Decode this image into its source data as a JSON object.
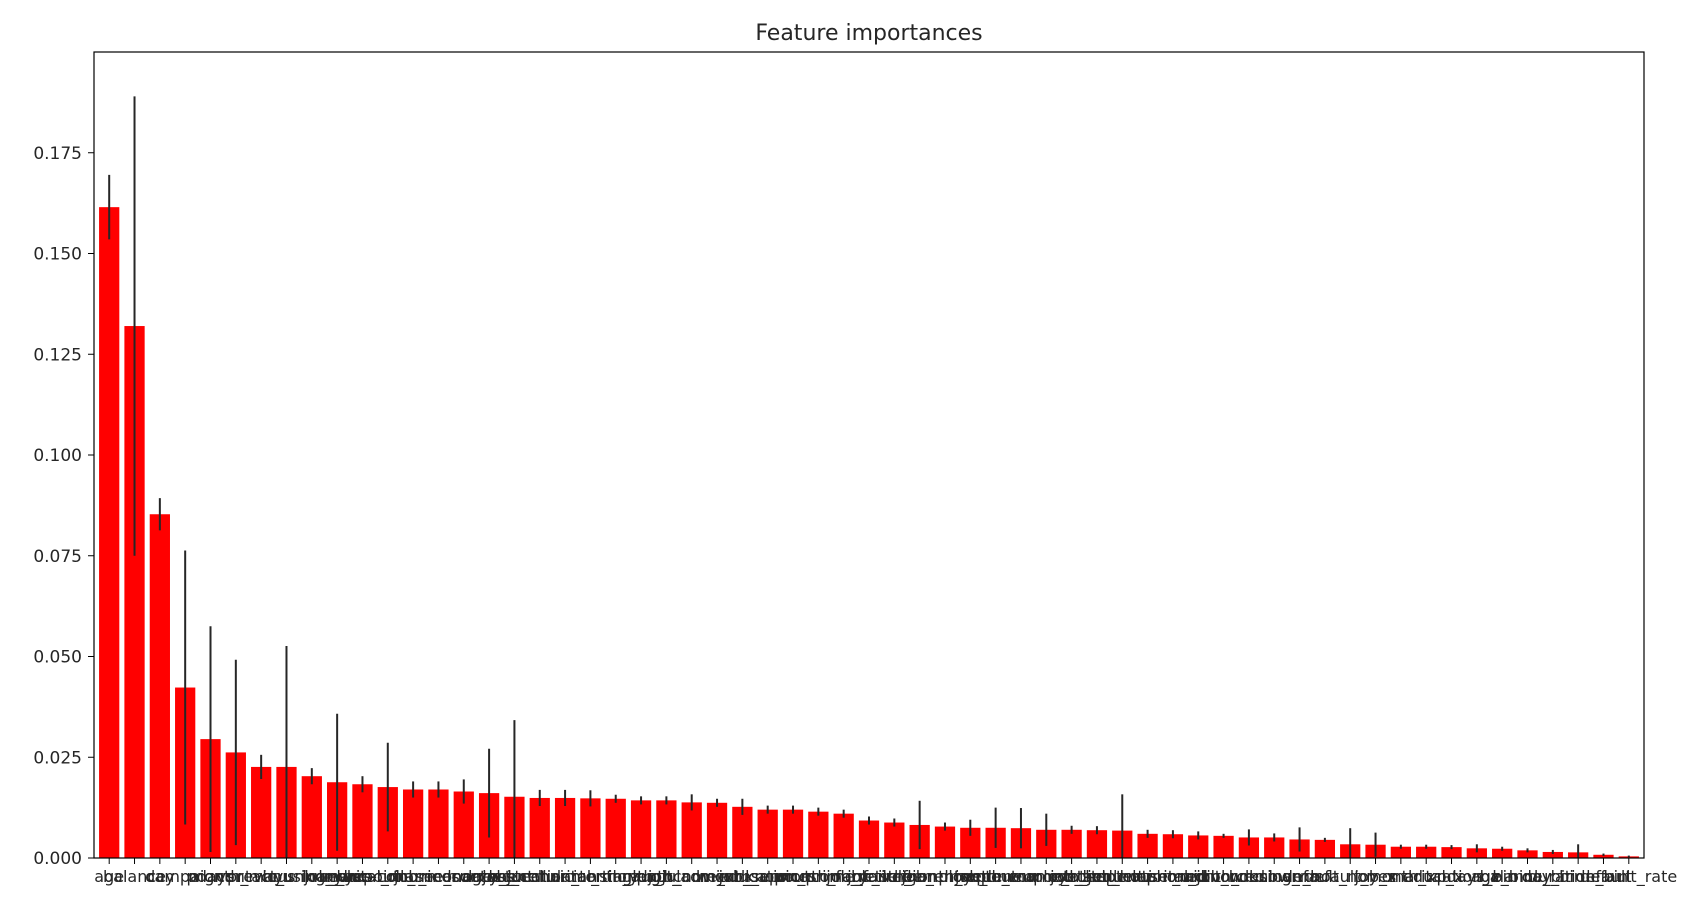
{
  "chart_data": {
    "type": "bar",
    "title": "Feature importances",
    "xlabel": "",
    "ylabel": "",
    "ylim": [
      0,
      0.2
    ],
    "yticks": [
      "0.000",
      "0.025",
      "0.050",
      "0.075",
      "0.100",
      "0.125",
      "0.150",
      "0.175"
    ],
    "ytick_values": [
      0,
      0.025,
      0.05,
      0.075,
      0.1,
      0.125,
      0.15,
      0.175
    ],
    "grid": false,
    "bar_color": "#ff0000",
    "error_color": "#262626",
    "values": [
      0.1615,
      0.132,
      0.0853,
      0.0423,
      0.0295,
      0.0262,
      0.0226,
      0.0226,
      0.0203,
      0.0188,
      0.0183,
      0.0176,
      0.017,
      0.017,
      0.0165,
      0.0161,
      0.0152,
      0.0149,
      0.0149,
      0.0148,
      0.0147,
      0.0143,
      0.0143,
      0.0138,
      0.0137,
      0.0127,
      0.012,
      0.012,
      0.0115,
      0.011,
      0.0093,
      0.0088,
      0.0082,
      0.0078,
      0.0075,
      0.0075,
      0.0074,
      0.007,
      0.007,
      0.0069,
      0.0068,
      0.006,
      0.0059,
      0.0056,
      0.0055,
      0.0051,
      0.0051,
      0.0046,
      0.0045,
      0.0034,
      0.0033,
      0.0028,
      0.0028,
      0.0027,
      0.0024,
      0.0023,
      0.0019,
      0.0015,
      0.0014,
      0.0008,
      0.0004
    ],
    "errors": [
      0.008,
      0.057,
      0.004,
      0.034,
      0.028,
      0.023,
      0.003,
      0.03,
      0.002,
      0.017,
      0.002,
      0.011,
      0.002,
      0.002,
      0.003,
      0.011,
      0.019,
      0.002,
      0.002,
      0.002,
      0.001,
      0.001,
      0.001,
      0.002,
      0.001,
      0.002,
      0.001,
      0.001,
      0.001,
      0.001,
      0.001,
      0.001,
      0.006,
      0.001,
      0.002,
      0.005,
      0.005,
      0.004,
      0.001,
      0.001,
      0.009,
      0.001,
      0.001,
      0.001,
      0.0005,
      0.002,
      0.001,
      0.003,
      0.0005,
      0.004,
      0.003,
      0.0005,
      0.0005,
      0.0005,
      0.001,
      0.0005,
      0.0005,
      0.0005,
      0.002,
      0.0003,
      0.0002
    ],
    "categories": [
      "age",
      "balance",
      "day",
      "campaign",
      "pdays",
      "month_may",
      "previous",
      "contact_unknown",
      "housing_yes",
      "loan_yes",
      "job_blue-collar",
      "marital_married",
      "education_secondary",
      "poutcome_success",
      "job_management",
      "month_jun",
      "contact_cellular",
      "job_technician",
      "education_tertiary",
      "marital_single",
      "month_aug",
      "month_jul",
      "month_nov",
      "job_admin.",
      "poutcome_unknown",
      "month_apr",
      "job_services",
      "education_primary",
      "month_feb",
      "poutcome_failure",
      "job_retired",
      "month_jan",
      "job_self-employed",
      "month_oct",
      "job_entrepreneur",
      "month_mar",
      "job_unemployed",
      "poutcome_other",
      "month_sep",
      "job_student",
      "contact_telephone",
      "job_housemaid",
      "education_unknown",
      "marital_divorced",
      "month_dec",
      "job_unknown",
      "housing_no",
      "loan_no",
      "default_no",
      "default_yes",
      "job_x",
      "month_x",
      "marital_x",
      "education_x",
      "pdays_bin",
      "age_bin",
      "balance_bin",
      "day_bin",
      "duration_bin",
      "default",
      "default_rate"
    ]
  }
}
